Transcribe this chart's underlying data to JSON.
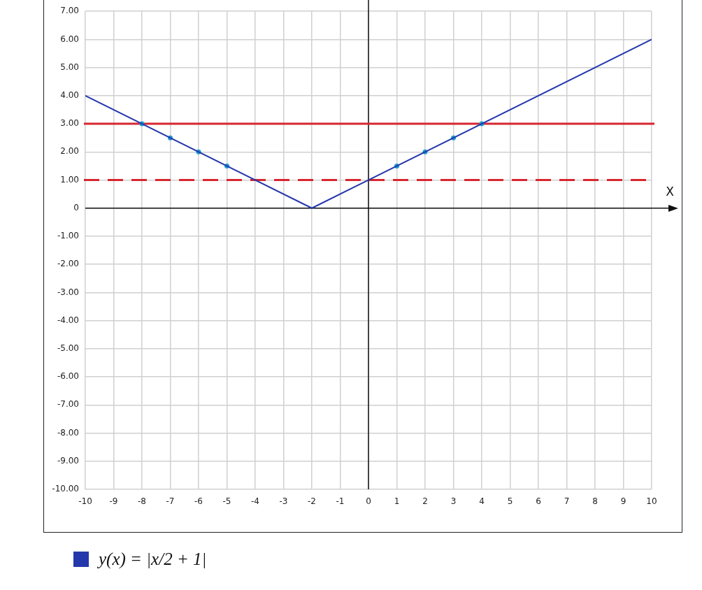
{
  "chart_data": {
    "type": "line",
    "xlabel": "X",
    "series": [
      {
        "type": "line",
        "name": "y(x) = |x/2 + 1|",
        "color": "#2438ab",
        "marker": "none",
        "x": [
          -10,
          -2,
          10
        ],
        "values": [
          4,
          0,
          6
        ]
      },
      {
        "type": "scatter",
        "color": "#1b9ad6",
        "marker": "circle",
        "x": [
          -8,
          -7,
          -6,
          -5,
          1,
          2,
          3,
          4
        ],
        "values": [
          3,
          2.5,
          2,
          1.5,
          1.5,
          2,
          2.5,
          3
        ]
      }
    ],
    "xlim": [
      -10,
      10
    ],
    "xticks": [
      -10,
      -9,
      -8,
      -7,
      -6,
      -5,
      -4,
      -3,
      -2,
      -1,
      0,
      1,
      2,
      3,
      4,
      5,
      6,
      7,
      8,
      9,
      10
    ],
    "ylim": [
      -10,
      7
    ],
    "yticks": [
      {
        "value": -10,
        "label": "-10.00"
      },
      {
        "value": -9,
        "label": "-9.00"
      },
      {
        "value": -8,
        "label": "-8.00"
      },
      {
        "value": -7,
        "label": "-7.00"
      },
      {
        "value": -6,
        "label": "-6.00"
      },
      {
        "value": -5,
        "label": "-5.00"
      },
      {
        "value": -4,
        "label": "-4.00"
      },
      {
        "value": -3,
        "label": "-3.00"
      },
      {
        "value": -2,
        "label": "-2.00"
      },
      {
        "value": -1,
        "label": "-1.00"
      },
      0,
      {
        "value": 1,
        "label": "1.00"
      },
      {
        "value": 2,
        "label": "2.00"
      },
      {
        "value": 3,
        "label": "3.00"
      },
      {
        "value": 4,
        "label": "4.00"
      },
      {
        "value": 5,
        "label": "5.00"
      },
      {
        "value": 6,
        "label": "6.00"
      },
      {
        "value": 7,
        "label": "7.00"
      }
    ],
    "ref_lines": [
      {
        "axis": "y",
        "value": 3,
        "color": "#d8262f",
        "line_style": "solid"
      },
      {
        "axis": "y",
        "value": 1,
        "color": "#d8262f",
        "line_style": "dashed"
      }
    ],
    "grid": true,
    "legend": "bottom"
  }
}
